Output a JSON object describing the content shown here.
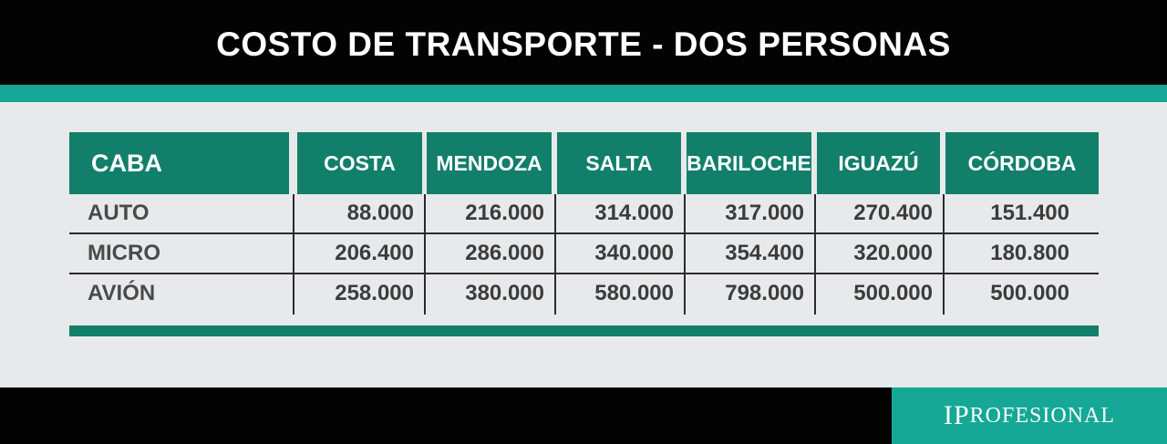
{
  "title": "COSTO DE TRANSPORTE - DOS PERSONAS",
  "table": {
    "origin": "CABA",
    "columns": [
      "COSTA",
      "MENDOZA",
      "SALTA",
      "BARILOCHE",
      "IGUAZÚ",
      "CÓRDOBA"
    ],
    "rows": [
      {
        "label": "AUTO",
        "values": [
          "88.000",
          "216.000",
          "314.000",
          "317.000",
          "270.400",
          "151.400"
        ]
      },
      {
        "label": "MICRO",
        "values": [
          "206.400",
          "286.000",
          "340.000",
          "354.400",
          "320.000",
          "180.800"
        ]
      },
      {
        "label": "AVIÓN",
        "values": [
          "258.000",
          "380.000",
          "580.000",
          "798.000",
          "500.000",
          "500.000"
        ]
      }
    ]
  },
  "brand": {
    "first": "I",
    "rest": "PROFESIONAL",
    "big_p": "P"
  },
  "colors": {
    "dark": "#030303",
    "teal": "#15a896",
    "dark_teal": "#117f6a",
    "panel": "#e8e9eb"
  }
}
